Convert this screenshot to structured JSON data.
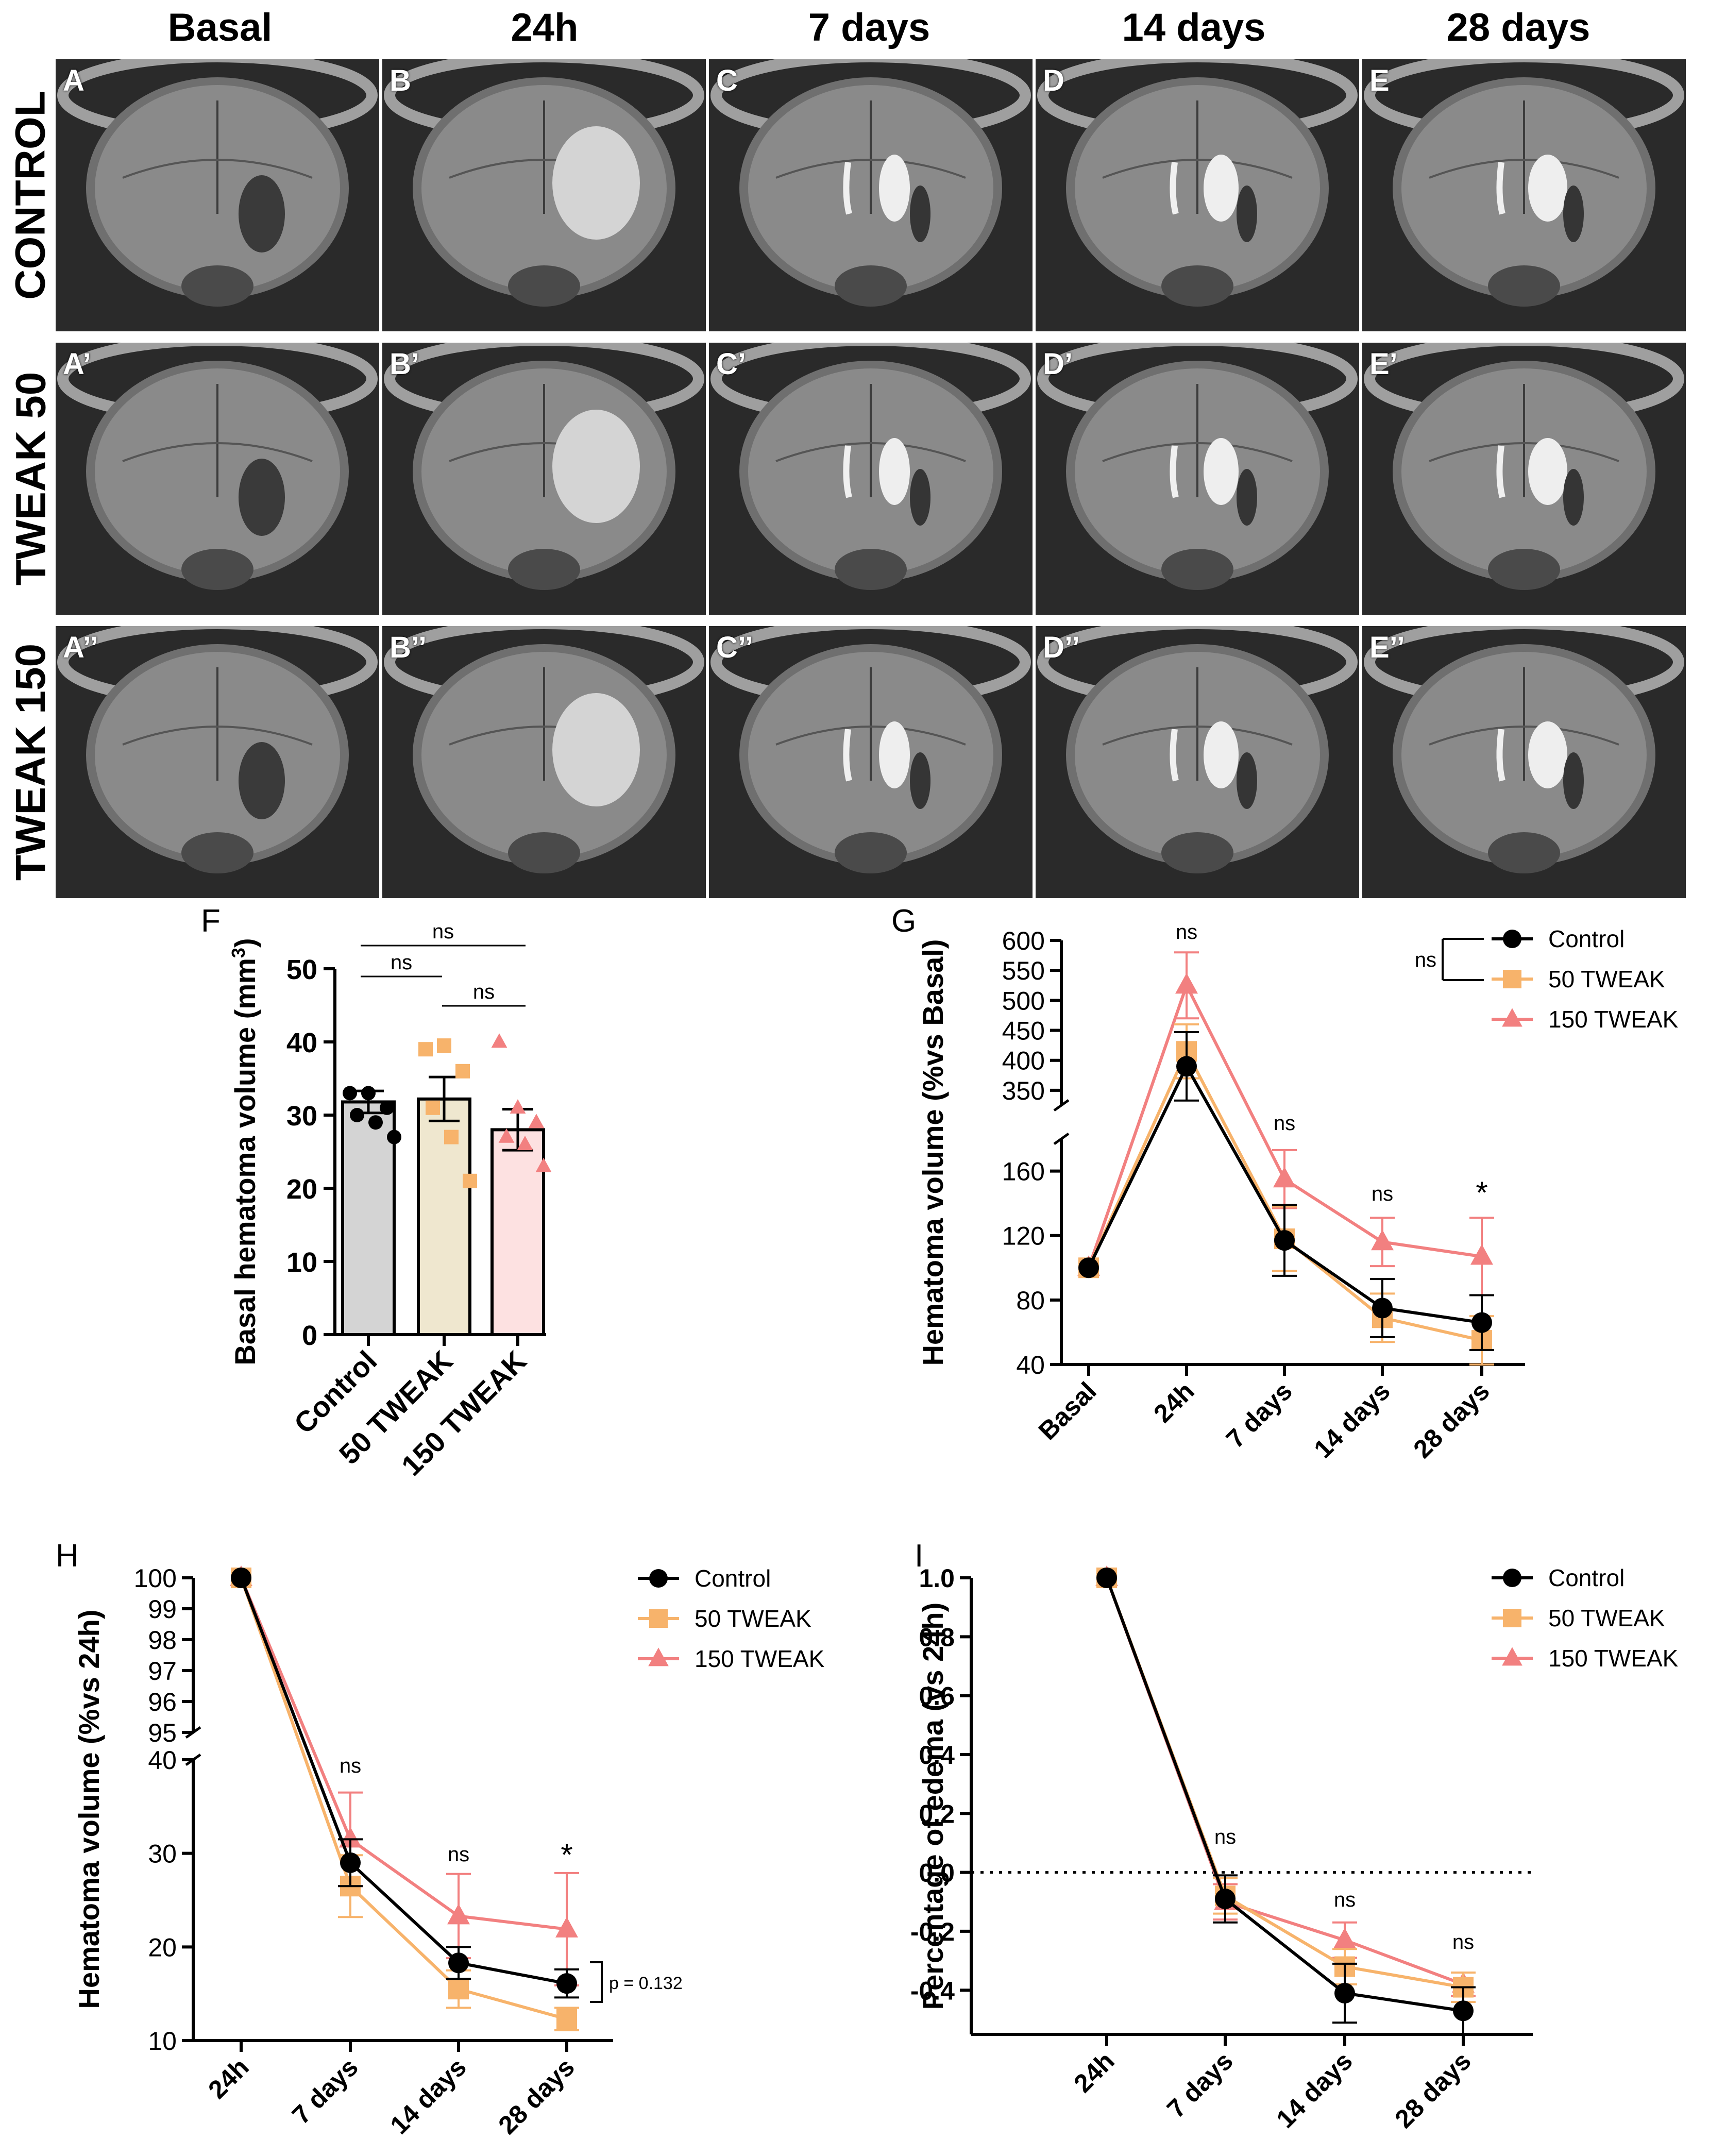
{
  "columns": [
    "Basal",
    "24h",
    "7 days",
    "14 days",
    "28 days"
  ],
  "rows": [
    "CONTROL",
    "TWEAK 50",
    "TWEAK 150"
  ],
  "panel_labels": [
    [
      "A",
      "B",
      "C",
      "D",
      "E"
    ],
    [
      "A’",
      "B’",
      "C’",
      "D’",
      "E’"
    ],
    [
      "A’’",
      "B’’",
      "C’’",
      "D’’",
      "E’’"
    ]
  ],
  "colors": {
    "control": "#000000",
    "tweak50": "#f7b36b",
    "tweak150": "#f28080",
    "bar_control": "#d4d4d4",
    "bar_50": "#efe7cf",
    "bar_150": "#fde1e1"
  },
  "chart_data": [
    {
      "panel": "F",
      "type": "bar",
      "title": "",
      "ylabel": "Basal hematoma volume (mm",
      "ylabel_sup": "3",
      "ylabel_close": ")",
      "categories": [
        "Control",
        "50 TWEAK",
        "150 TWEAK"
      ],
      "values": [
        31.8,
        32.2,
        28.0
      ],
      "errors": [
        1.5,
        3.0,
        2.8
      ],
      "points": [
        [
          33,
          33,
          31,
          30,
          29,
          27
        ],
        [
          39,
          39.5,
          36,
          31,
          27,
          21
        ],
        [
          40,
          31,
          29,
          27,
          26,
          23
        ]
      ],
      "ylim": [
        0,
        50
      ],
      "yticks": [
        "0",
        "10",
        "20",
        "30",
        "40",
        "50"
      ],
      "comparisons": [
        {
          "from": 0,
          "to": 2,
          "label": "ns"
        },
        {
          "from": 0,
          "to": 1,
          "label": "ns"
        },
        {
          "from": 1,
          "to": 2,
          "label": "ns"
        }
      ]
    },
    {
      "panel": "G",
      "type": "line",
      "ylabel": "Hematoma volume (%vs Basal)",
      "categories": [
        "Basal",
        "24h",
        "7 days",
        "14 days",
        "28 days"
      ],
      "upper_range": [
        325,
        600
      ],
      "upper_ticks": [
        "350",
        "400",
        "450",
        "500",
        "550",
        "600"
      ],
      "lower_range": [
        40,
        180
      ],
      "lower_ticks": [
        "40",
        "80",
        "120",
        "160"
      ],
      "series": [
        {
          "name": "Control",
          "values": [
            100,
            390,
            117,
            75,
            66
          ],
          "errors": [
            0,
            57,
            22,
            18,
            17
          ]
        },
        {
          "name": "50 TWEAK",
          "values": [
            100,
            415,
            118,
            69,
            55
          ],
          "errors": [
            0,
            45,
            20,
            15,
            15
          ]
        },
        {
          "name": "150 TWEAK",
          "values": [
            100,
            525,
            155,
            116,
            107
          ],
          "errors": [
            0,
            55,
            18,
            15,
            24
          ]
        }
      ],
      "annotations": [
        "ns",
        "ns",
        "ns",
        "*"
      ],
      "legend_bracket": "ns"
    },
    {
      "panel": "H",
      "type": "line",
      "ylabel": "Hematoma volume (%vs 24h)",
      "categories": [
        "24h",
        "7 days",
        "14 days",
        "28 days"
      ],
      "upper_range": [
        95,
        100
      ],
      "upper_ticks": [
        "95",
        "96",
        "97",
        "98",
        "99",
        "100"
      ],
      "lower_range": [
        10,
        40
      ],
      "lower_ticks": [
        "10",
        "20",
        "30",
        "40"
      ],
      "series": [
        {
          "name": "Control",
          "values": [
            100,
            29,
            18.3,
            16.1
          ],
          "errors": [
            0,
            2.5,
            1.7,
            1.5
          ]
        },
        {
          "name": "50 TWEAK",
          "values": [
            100,
            26.5,
            15.5,
            12.3
          ],
          "errors": [
            0,
            3.3,
            2.0,
            1.2
          ]
        },
        {
          "name": "150 TWEAK",
          "values": [
            100,
            31.5,
            23.3,
            21.9
          ],
          "errors": [
            0,
            5.0,
            4.5,
            6.0
          ]
        }
      ],
      "annotations": [
        "ns",
        "ns",
        "*"
      ],
      "pvalue": "p = 0.132"
    },
    {
      "panel": "I",
      "type": "line",
      "ylabel": "Percentage of edema (vs 24h)",
      "categories": [
        "24h",
        "7 days",
        "14 days",
        "28 days"
      ],
      "ylim": [
        -0.55,
        1.0
      ],
      "yticks": [
        "-0.4",
        "-0.2",
        "0.0",
        "0.2",
        "0.4",
        "0.6",
        "0.8",
        "1.0"
      ],
      "series": [
        {
          "name": "Control",
          "values": [
            1.0,
            -0.09,
            -0.41,
            -0.47
          ],
          "errors": [
            0,
            0.08,
            0.1,
            0.08
          ]
        },
        {
          "name": "50 TWEAK",
          "values": [
            1.0,
            -0.08,
            -0.32,
            -0.39
          ],
          "errors": [
            0,
            0.06,
            0.06,
            0.05
          ]
        },
        {
          "name": "150 TWEAK",
          "values": [
            1.0,
            -0.1,
            -0.23,
            -0.38
          ],
          "errors": [
            0,
            0.06,
            0.06,
            0.04
          ]
        }
      ],
      "annotations": [
        "ns",
        "ns",
        "ns"
      ],
      "reference_line": 0
    }
  ]
}
